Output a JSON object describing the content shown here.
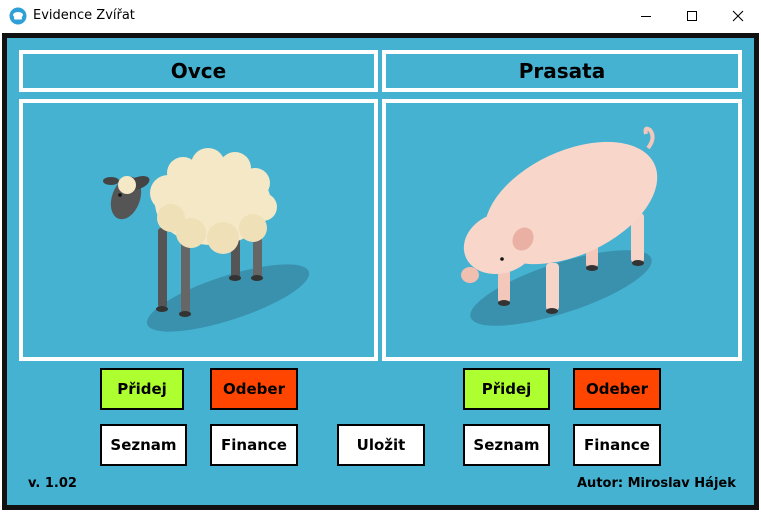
{
  "window": {
    "title": "Evidence Zvířat",
    "icon": "app-logo-icon"
  },
  "window_controls": [
    "minimize-icon",
    "maximize-icon",
    "close-icon"
  ],
  "colors": {
    "background": "#45b2d2",
    "add": "#adff2f",
    "remove": "#ff4500",
    "white": "#ffffff"
  },
  "panels": {
    "left": {
      "title": "Ovce",
      "image": "sheep-illustration"
    },
    "right": {
      "title": "Prasata",
      "image": "pig-illustration"
    }
  },
  "buttons": {
    "left": {
      "add": "Přidej",
      "remove": "Odeber",
      "list": "Seznam",
      "finance": "Finance"
    },
    "right": {
      "add": "Přidej",
      "remove": "Odeber",
      "list": "Seznam",
      "finance": "Finance"
    },
    "save": "Uložit"
  },
  "footer": {
    "version": "v. 1.02",
    "author": "Autor: Miroslav Hájek"
  }
}
